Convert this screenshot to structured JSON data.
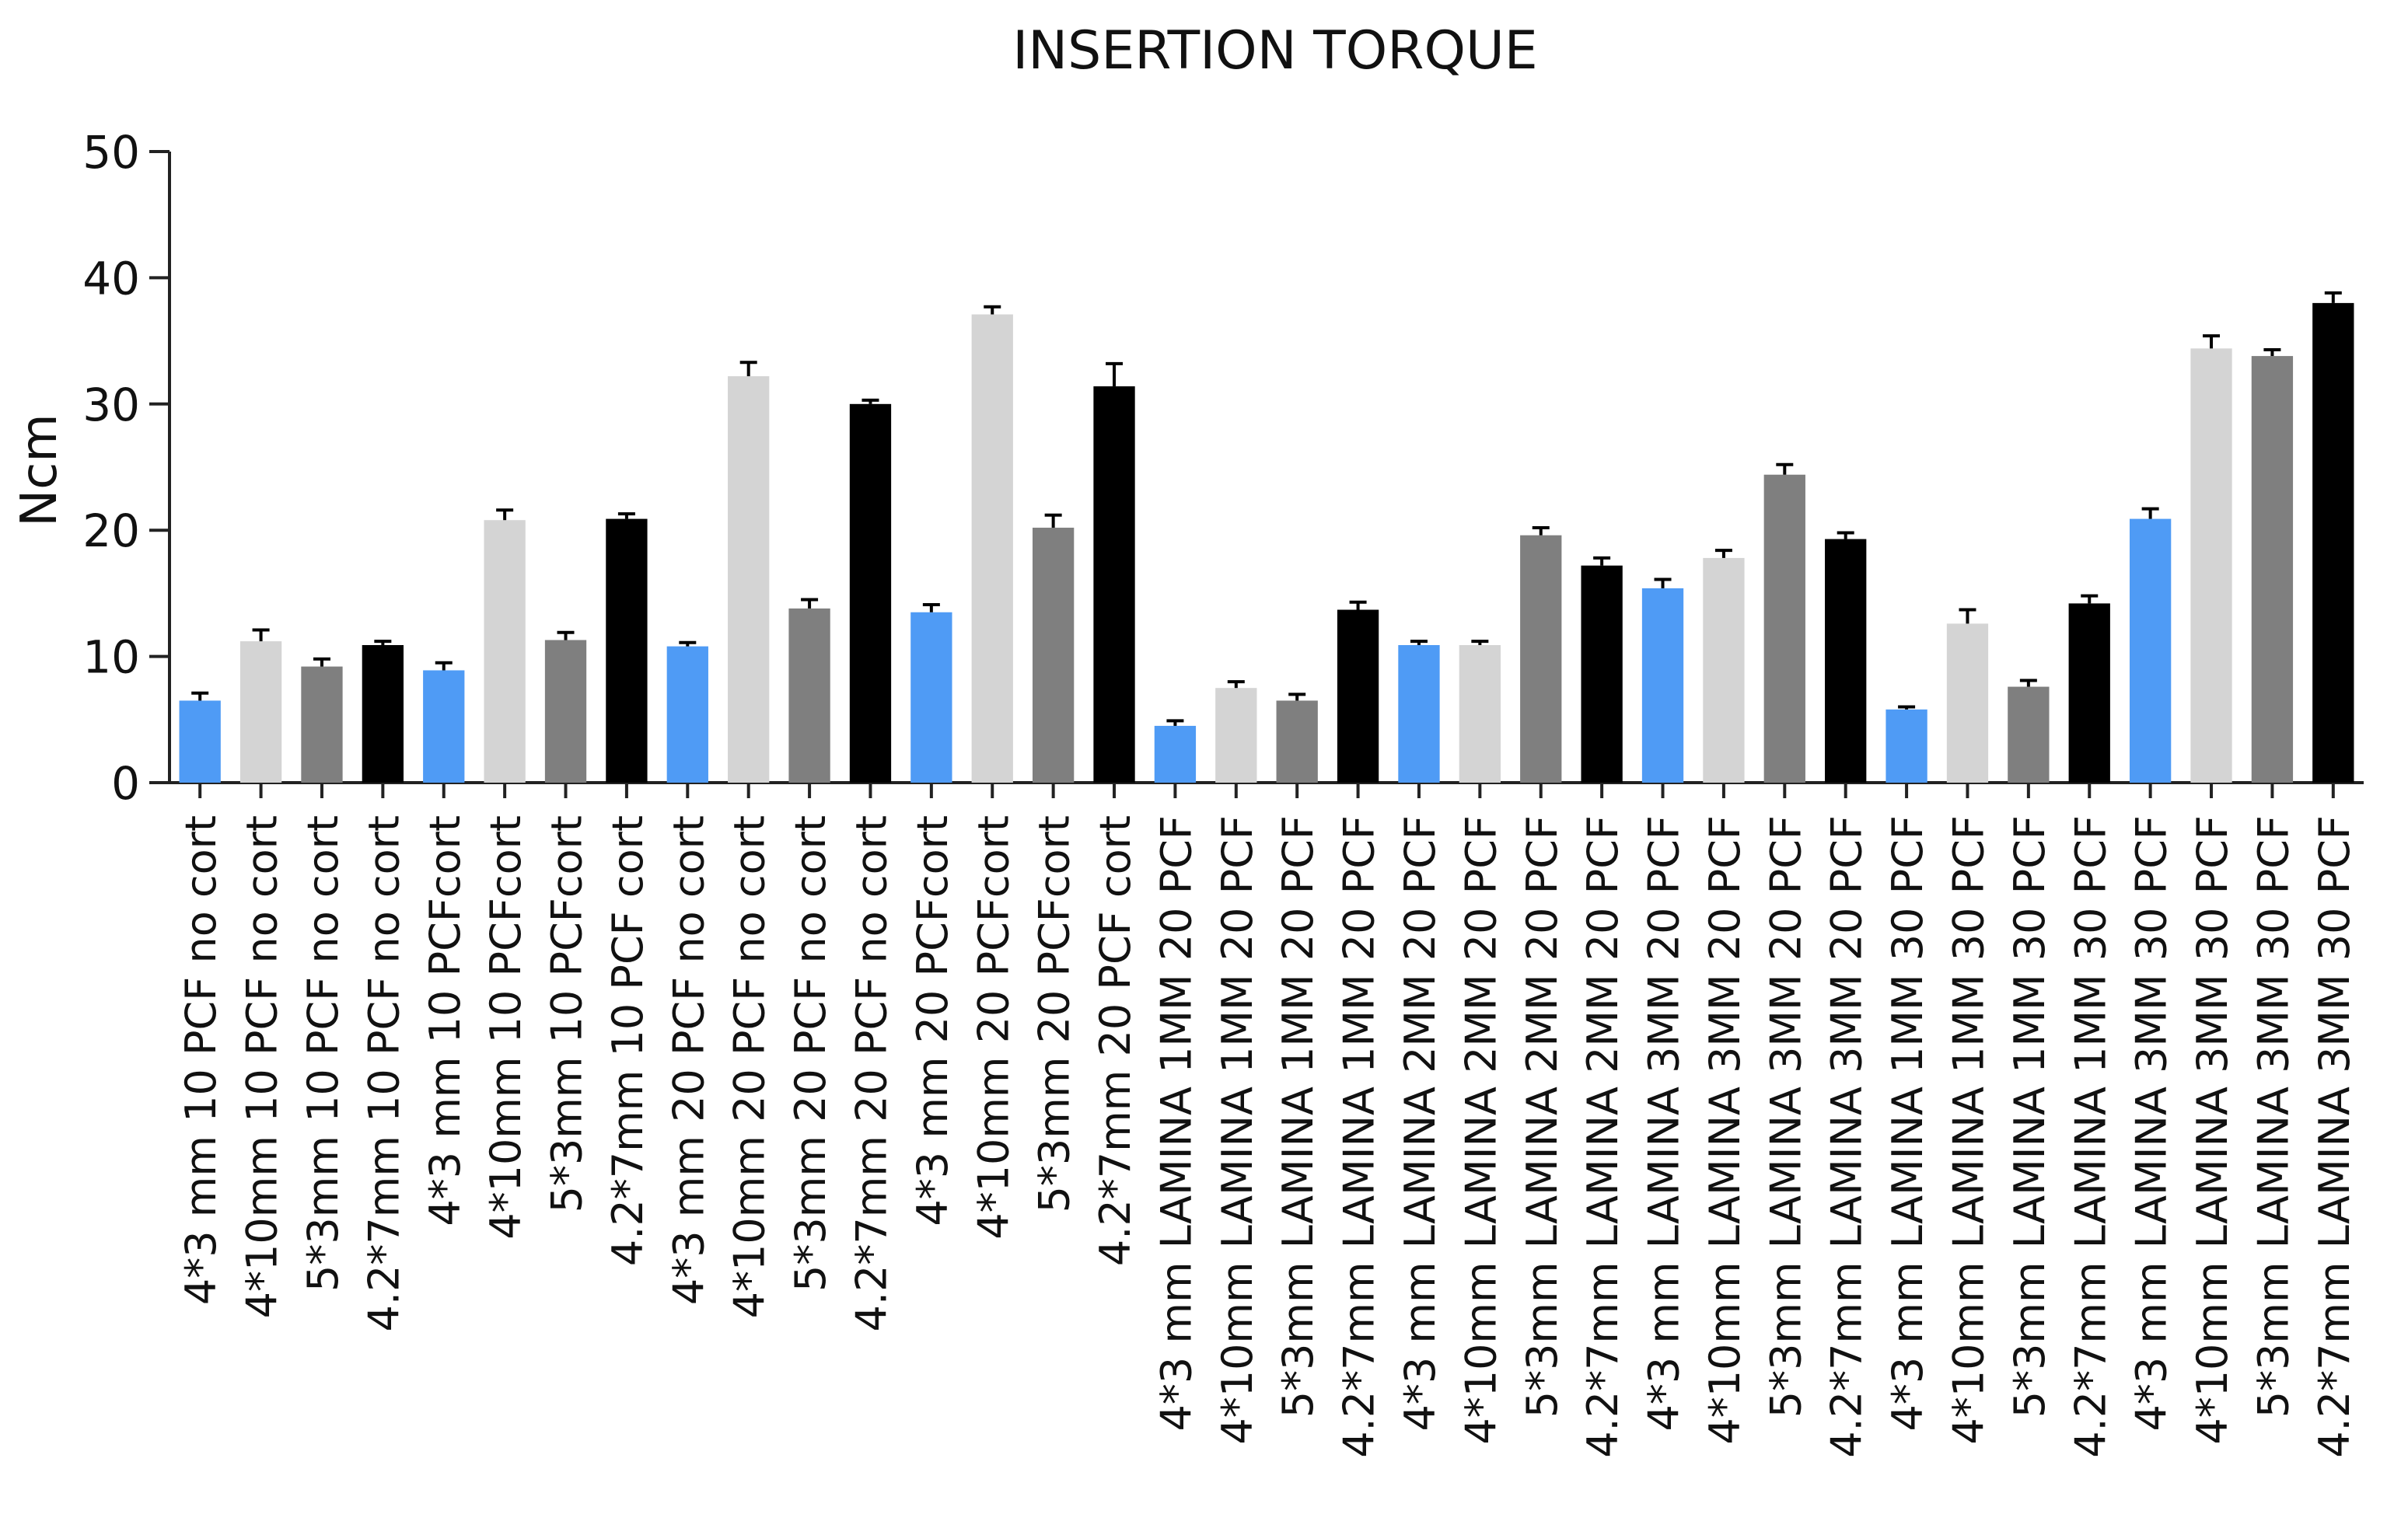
{
  "chart_data": {
    "type": "bar",
    "title": "INSERTION TORQUE",
    "xlabel": "",
    "ylabel": "Ncm",
    "ylim": [
      0,
      50
    ],
    "yticks": [
      0,
      10,
      20,
      30,
      40,
      50
    ],
    "grid": false,
    "legend": "none",
    "colors": {
      "4*3": "#4f9bf5",
      "4*10": "#d4d4d4",
      "5*3": "#7f7f7f",
      "4.2*7": "#000000",
      "axis": "#222222",
      "text": "#111111"
    },
    "categories": [
      "4*3 mm 10 PCF no cort",
      "4*10mm 10 PCF no cort",
      "5*3mm 10 PCF no cort",
      "4.2*7mm 10 PCF no cort",
      "4*3 mm 10 PCFcort",
      "4*10mm 10 PCFcort",
      "5*3mm 10 PCFcort",
      "4.2*7mm 10 PCF cort",
      "4*3 mm 20 PCF no cort",
      "4*10mm 20 PCF no cort",
      "5*3mm 20 PCF no cort",
      "4.2*7mm 20 PCF no cort",
      "4*3 mm 20 PCFcort",
      "4*10mm 20 PCFcort",
      "5*3mm 20 PCFcort",
      "4.2*7mm 20 PCF cort",
      "4*3 mm LAMINA 1MM 20 PCF",
      "4*10mm LAMINA 1MM 20 PCF",
      "5*3mm LAMINA 1MM 20 PCF",
      "4.2*7mm LAMINA 1MM 20 PCF",
      "4*3 mm LAMINA 2MM 20 PCF",
      "4*10mm LAMINA 2MM 20 PCF",
      "5*3mm LAMINA 2MM 20 PCF",
      "4.2*7mm LAMINA 2MM 20 PCF",
      "4*3 mm LAMINA 3MM 20 PCF",
      "4*10mm LAMINA 3MM 20 PCF",
      "5*3mm LAMINA 3MM 20 PCF",
      "4.2*7mm LAMINA 3MM 20 PCF",
      "4*3 mm LAMINA 1MM 30 PCF",
      "4*10mm LAMINA 1MM 30 PCF",
      "5*3mm LAMINA 1MM 30 PCF",
      "4.2*7mm LAMINA 1MM 30 PCF",
      "4*3 mm LAMINA 3MM 30 PCF",
      "4*10mm LAMINA 3MM 30 PCF",
      "5*3mm LAMINA 3MM 30 PCF",
      "4.2*7mm LAMINA 3MM 30 PCF"
    ],
    "values": [
      6.5,
      11.2,
      9.2,
      10.9,
      8.9,
      20.8,
      11.3,
      20.9,
      10.8,
      32.2,
      13.8,
      30.0,
      13.5,
      37.1,
      20.2,
      31.4,
      4.5,
      7.5,
      6.5,
      13.7,
      10.9,
      10.9,
      19.6,
      17.2,
      15.4,
      17.8,
      24.4,
      19.3,
      5.8,
      12.6,
      7.6,
      14.2,
      20.9,
      34.4,
      33.8,
      38.0
    ],
    "errors": [
      0.6,
      0.9,
      0.6,
      0.3,
      0.6,
      0.8,
      0.6,
      0.4,
      0.3,
      1.1,
      0.7,
      0.3,
      0.6,
      0.6,
      1.0,
      1.8,
      0.4,
      0.5,
      0.5,
      0.6,
      0.3,
      0.3,
      0.6,
      0.6,
      0.7,
      0.6,
      0.8,
      0.5,
      0.2,
      1.1,
      0.5,
      0.6,
      0.8,
      1.0,
      0.5,
      0.8
    ],
    "bar_colors": [
      "4*3",
      "4*10",
      "5*3",
      "4.2*7",
      "4*3",
      "4*10",
      "5*3",
      "4.2*7",
      "4*3",
      "4*10",
      "5*3",
      "4.2*7",
      "4*3",
      "4*10",
      "5*3",
      "4.2*7",
      "4*3",
      "4*10",
      "5*3",
      "4.2*7",
      "4*3",
      "4*10",
      "5*3",
      "4.2*7",
      "4*3",
      "4*10",
      "5*3",
      "4.2*7",
      "4*3",
      "4*10",
      "5*3",
      "4.2*7",
      "4*3",
      "4*10",
      "5*3",
      "4.2*7"
    ]
  }
}
